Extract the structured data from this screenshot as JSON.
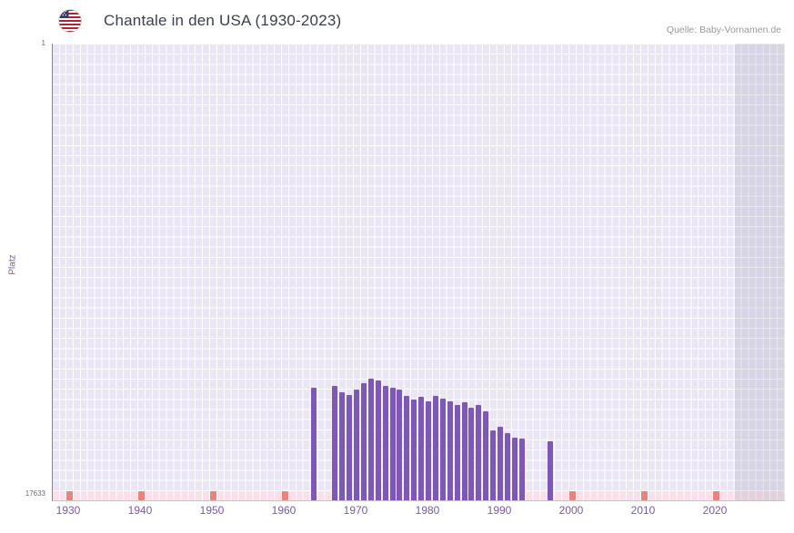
{
  "header": {
    "title": "Chantale in den USA (1930-2023)",
    "source": "Quelle: Baby-Vornamen.de",
    "flag_icon": "us-flag-icon"
  },
  "chart": {
    "ylabel": "Platz",
    "y_tick_top": "1",
    "y_tick_bottom": "17633"
  },
  "chart_data": {
    "type": "bar",
    "title": "Chantale in den USA (1930-2023)",
    "xlabel": "",
    "ylabel": "Platz",
    "x_range": [
      1930,
      2023
    ],
    "y_axis": {
      "best": 1,
      "worst": 17633,
      "inverted": true
    },
    "x_tick_labels": [
      "1930",
      "1940",
      "1950",
      "1960",
      "1970",
      "1980",
      "1990",
      "2000",
      "2010",
      "2020"
    ],
    "grid": true,
    "legend": "none",
    "bar_color": "#7e57b8",
    "unranked_strip_color": "#fbdfea",
    "unranked_marker_color": "#e8837e",
    "series": [
      {
        "year": 1964,
        "rank": 13300
      },
      {
        "year": 1967,
        "rank": 13200
      },
      {
        "year": 1968,
        "rank": 13450
      },
      {
        "year": 1969,
        "rank": 13550
      },
      {
        "year": 1970,
        "rank": 13350
      },
      {
        "year": 1971,
        "rank": 13100
      },
      {
        "year": 1972,
        "rank": 12950
      },
      {
        "year": 1973,
        "rank": 13000
      },
      {
        "year": 1974,
        "rank": 13200
      },
      {
        "year": 1975,
        "rank": 13300
      },
      {
        "year": 1976,
        "rank": 13350
      },
      {
        "year": 1977,
        "rank": 13600
      },
      {
        "year": 1978,
        "rank": 13750
      },
      {
        "year": 1979,
        "rank": 13650
      },
      {
        "year": 1980,
        "rank": 13800
      },
      {
        "year": 1981,
        "rank": 13600
      },
      {
        "year": 1982,
        "rank": 13700
      },
      {
        "year": 1983,
        "rank": 13800
      },
      {
        "year": 1984,
        "rank": 13950
      },
      {
        "year": 1985,
        "rank": 13850
      },
      {
        "year": 1986,
        "rank": 14050
      },
      {
        "year": 1987,
        "rank": 13950
      },
      {
        "year": 1988,
        "rank": 14200
      },
      {
        "year": 1989,
        "rank": 14950
      },
      {
        "year": 1990,
        "rank": 14800
      },
      {
        "year": 1991,
        "rank": 15050
      },
      {
        "year": 1992,
        "rank": 15200
      },
      {
        "year": 1993,
        "rank": 15250
      },
      {
        "year": 1997,
        "rank": 15350
      }
    ],
    "unranked_marker_years": [
      1930,
      1940,
      1950,
      1960,
      2000,
      2010,
      2020
    ]
  }
}
